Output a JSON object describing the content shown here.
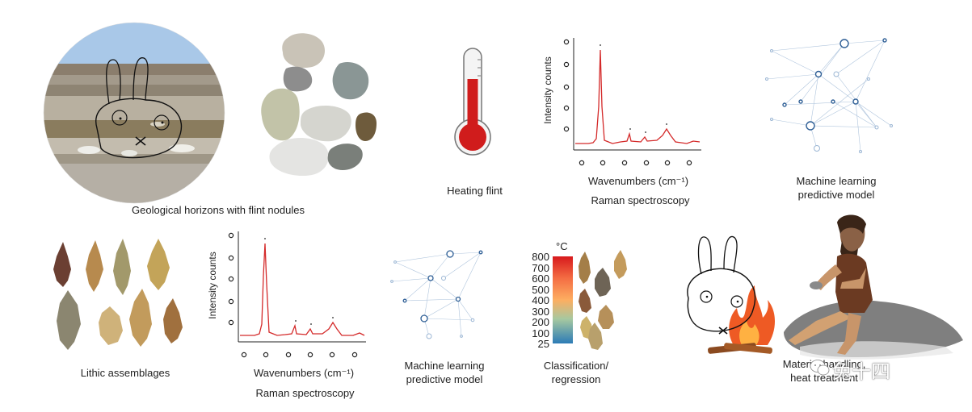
{
  "captions": {
    "geological": "Geological horizons with flint nodules",
    "heating": "Heating flint",
    "raman_top": "Raman spectroscopy",
    "ml_top_line1": "Machine learning",
    "ml_top_line2": "predictive model",
    "lithic": "Lithic assemblages",
    "raman_bottom": "Raman spectroscopy",
    "ml_bottom_line1": "Machine learning",
    "ml_bottom_line2": "predictive model",
    "classif_line1": "Classification/",
    "classif_line2": "regression",
    "material_line1": "Material handling,",
    "material_line2": "heat treatment"
  },
  "spectrum": {
    "ylabel": "Intensity counts",
    "xlabel": "Wavenumbers (cm⁻¹)"
  },
  "colorbar": {
    "unit": "°C",
    "ticks": [
      "800",
      "700",
      "600",
      "500",
      "400",
      "300",
      "200",
      "100",
      "25"
    ],
    "colors": {
      "top": "#d7191c",
      "mid": "#fdae61",
      "bottom": "#2c7bb6"
    }
  },
  "watermark": "兔十四",
  "colors": {
    "spectrum_line": "#d42a2a",
    "network": "#2f5f96",
    "thermometer": "#d01c1c"
  },
  "icons": [
    "thermometer-icon",
    "network-icon",
    "wechat-icon"
  ]
}
